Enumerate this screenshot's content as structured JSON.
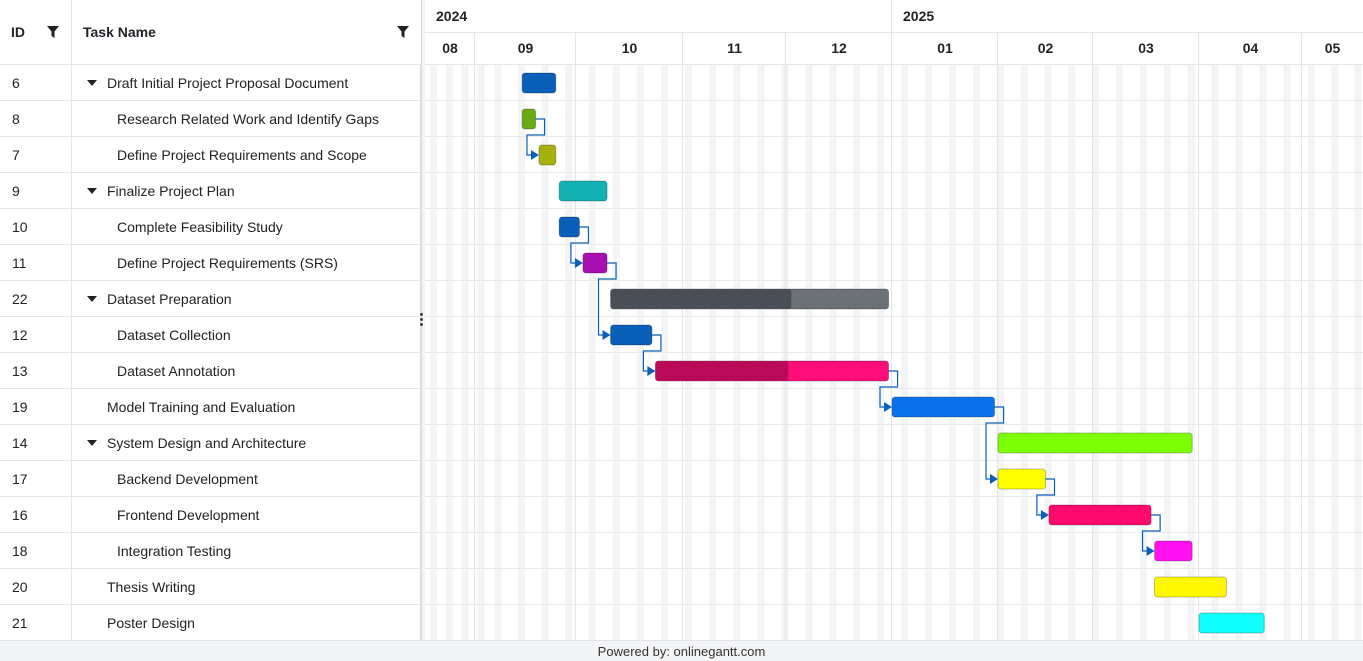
{
  "grid": {
    "id_header": "ID",
    "name_header": "Task Name",
    "rows": [
      {
        "id": "6",
        "name": "Draft Initial Project Proposal Document",
        "level": 1,
        "parent": true
      },
      {
        "id": "8",
        "name": "Research Related Work and Identify Gaps",
        "level": 2,
        "parent": false
      },
      {
        "id": "7",
        "name": "Define Project Requirements and Scope",
        "level": 2,
        "parent": false
      },
      {
        "id": "9",
        "name": "Finalize Project Plan",
        "level": 1,
        "parent": true
      },
      {
        "id": "10",
        "name": "Complete Feasibility Study",
        "level": 2,
        "parent": false
      },
      {
        "id": "11",
        "name": "Define Project Requirements (SRS)",
        "level": 2,
        "parent": false
      },
      {
        "id": "22",
        "name": "Dataset Preparation",
        "level": 1,
        "parent": true
      },
      {
        "id": "12",
        "name": "Dataset Collection",
        "level": 2,
        "parent": false
      },
      {
        "id": "13",
        "name": "Dataset Annotation",
        "level": 2,
        "parent": false
      },
      {
        "id": "19",
        "name": "Model Training and Evaluation",
        "level": 1,
        "parent": false
      },
      {
        "id": "14",
        "name": "System Design and Architecture",
        "level": 1,
        "parent": true
      },
      {
        "id": "17",
        "name": "Backend Development",
        "level": 2,
        "parent": false
      },
      {
        "id": "16",
        "name": "Frontend Development",
        "level": 2,
        "parent": false
      },
      {
        "id": "18",
        "name": "Integration Testing",
        "level": 2,
        "parent": false
      },
      {
        "id": "20",
        "name": "Thesis Writing",
        "level": 1,
        "parent": false
      },
      {
        "id": "21",
        "name": "Poster Design",
        "level": 1,
        "parent": false
      }
    ]
  },
  "timeline": {
    "years": [
      "2024",
      "2025"
    ],
    "months": [
      "08",
      "09",
      "10",
      "11",
      "12",
      "01",
      "02",
      "03",
      "04",
      "05"
    ],
    "bars": [
      {
        "row": 0,
        "start": "2024-09-15",
        "end": "2024-09-25",
        "color": "#0a5fb8",
        "progress": 0
      },
      {
        "row": 1,
        "start": "2024-09-15",
        "end": "2024-09-19",
        "color": "#6aaa12",
        "progress": 0
      },
      {
        "row": 2,
        "start": "2024-09-20",
        "end": "2024-09-25",
        "color": "#a8b00a",
        "progress": 0
      },
      {
        "row": 3,
        "start": "2024-09-26",
        "end": "2024-10-10",
        "color": "#14b1b3",
        "progress": 0
      },
      {
        "row": 4,
        "start": "2024-09-26",
        "end": "2024-10-02",
        "color": "#0a5fb8",
        "progress": 0
      },
      {
        "row": 5,
        "start": "2024-10-03",
        "end": "2024-10-10",
        "color": "#a80fb0",
        "progress": 0
      },
      {
        "row": 6,
        "start": "2024-10-11",
        "end": "2024-12-31",
        "color": "#6c7178",
        "progress_color": "#4a4f57",
        "progress": 65
      },
      {
        "row": 7,
        "start": "2024-10-11",
        "end": "2024-10-23",
        "color": "#0a5fb8",
        "progress": 0
      },
      {
        "row": 8,
        "start": "2024-10-24",
        "end": "2024-12-31",
        "color": "#fd0e78",
        "progress_color": "#b80a58",
        "progress": 57
      },
      {
        "row": 9,
        "start": "2025-01-01",
        "end": "2025-01-31",
        "color": "#0a72e8",
        "progress": 0
      },
      {
        "row": 10,
        "start": "2025-02-01",
        "end": "2025-03-30",
        "color": "#7dff05",
        "progress": 0
      },
      {
        "row": 11,
        "start": "2025-02-01",
        "end": "2025-02-15",
        "color": "#ffff00",
        "progress": 0
      },
      {
        "row": 12,
        "start": "2025-02-16",
        "end": "2025-03-18",
        "color": "#fd0a6d",
        "progress": 0
      },
      {
        "row": 13,
        "start": "2025-03-19",
        "end": "2025-03-30",
        "color": "#ff12ef",
        "progress": 0
      },
      {
        "row": 14,
        "start": "2025-03-19",
        "end": "2025-04-09",
        "color": "#fff800",
        "progress": 0
      },
      {
        "row": 15,
        "start": "2025-04-01",
        "end": "2025-04-20",
        "color": "#12ffff",
        "progress": 0
      }
    ],
    "links": [
      {
        "from": 1,
        "to": 2
      },
      {
        "from": 4,
        "to": 5
      },
      {
        "from": 5,
        "to": 7
      },
      {
        "from": 7,
        "to": 8
      },
      {
        "from": 8,
        "to": 9
      },
      {
        "from": 9,
        "to": 11
      },
      {
        "from": 11,
        "to": 12
      },
      {
        "from": 12,
        "to": 13
      }
    ]
  },
  "footer": {
    "text": "Powered by: onlinegantt.com"
  }
}
